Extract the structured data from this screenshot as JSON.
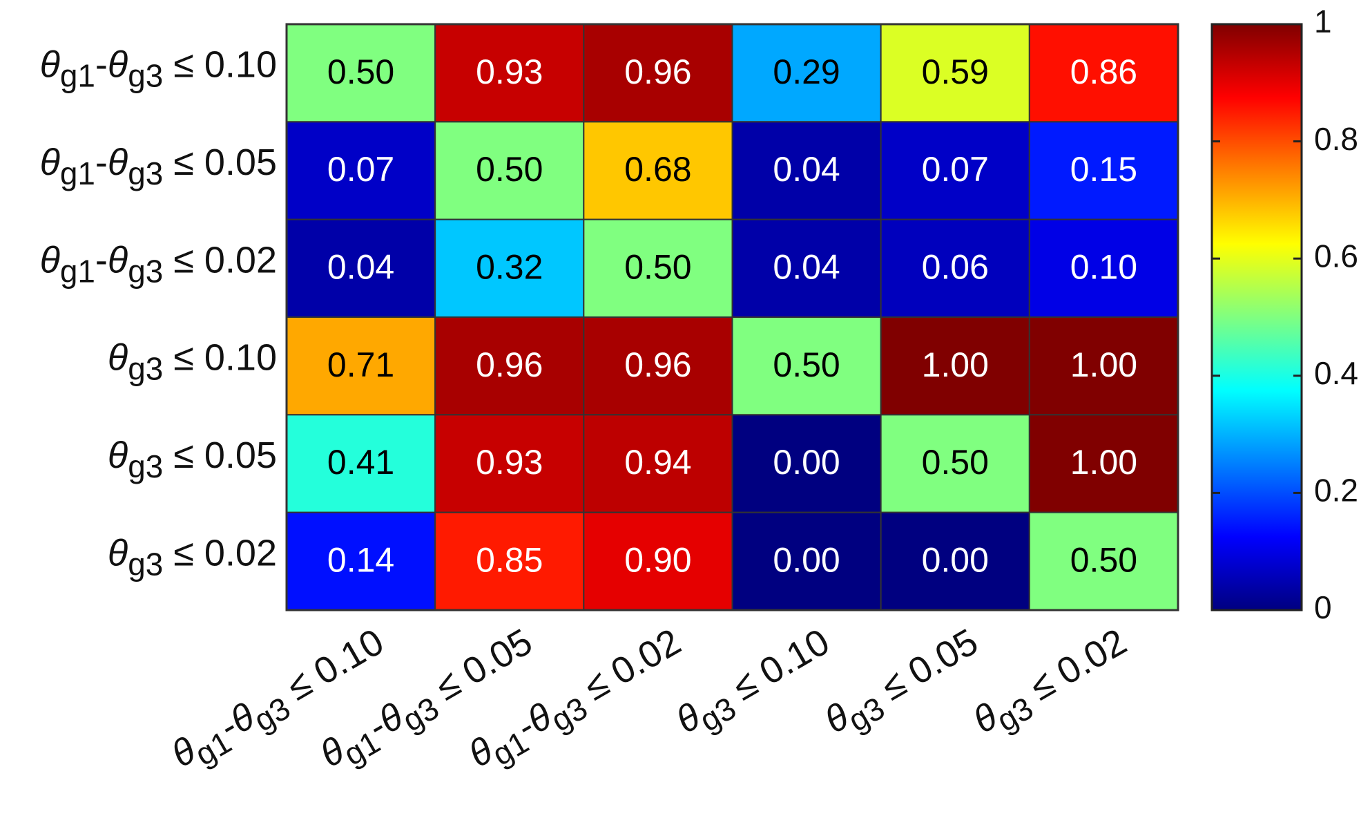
{
  "chart_data": {
    "type": "heatmap",
    "colormap": "jet",
    "x_categories": [
      "θg1-θg3 ≤ 0.10",
      "θg1-θg3 ≤ 0.05",
      "θg1-θg3 ≤ 0.02",
      "θg3 ≤ 0.10",
      "θg3 ≤ 0.05",
      "θg3 ≤ 0.02"
    ],
    "y_categories": [
      "θg1-θg3 ≤ 0.10",
      "θg1-θg3 ≤ 0.05",
      "θg1-θg3 ≤ 0.02",
      "θg3 ≤ 0.10",
      "θg3 ≤ 0.05",
      "θg3 ≤ 0.02"
    ],
    "values": [
      [
        0.5,
        0.93,
        0.96,
        0.29,
        0.59,
        0.86
      ],
      [
        0.07,
        0.5,
        0.68,
        0.04,
        0.07,
        0.15
      ],
      [
        0.04,
        0.32,
        0.5,
        0.04,
        0.06,
        0.1
      ],
      [
        0.71,
        0.96,
        0.96,
        0.5,
        1,
        1
      ],
      [
        0.41,
        0.93,
        0.94,
        0,
        0.5,
        1
      ],
      [
        0.14,
        0.85,
        0.9,
        0,
        0,
        0.5
      ]
    ],
    "value_labels": [
      [
        "0.50",
        "0.93",
        "0.96",
        "0.29",
        "0.59",
        "0.86"
      ],
      [
        "0.07",
        "0.50",
        "0.68",
        "0.04",
        "0.07",
        "0.15"
      ],
      [
        "0.04",
        "0.32",
        "0.50",
        "0.04",
        "0.06",
        "0.10"
      ],
      [
        "0.71",
        "0.96",
        "0.96",
        "0.50",
        "1.00",
        "1.00"
      ],
      [
        "0.41",
        "0.93",
        "0.94",
        "0.00",
        "0.50",
        "1.00"
      ],
      [
        "0.14",
        "0.85",
        "0.90",
        "0.00",
        "0.00",
        "0.50"
      ]
    ],
    "colorbar": {
      "lim": [
        0,
        1
      ],
      "ticks": [
        0,
        0.2,
        0.4,
        0.6,
        0.8,
        1
      ]
    }
  }
}
